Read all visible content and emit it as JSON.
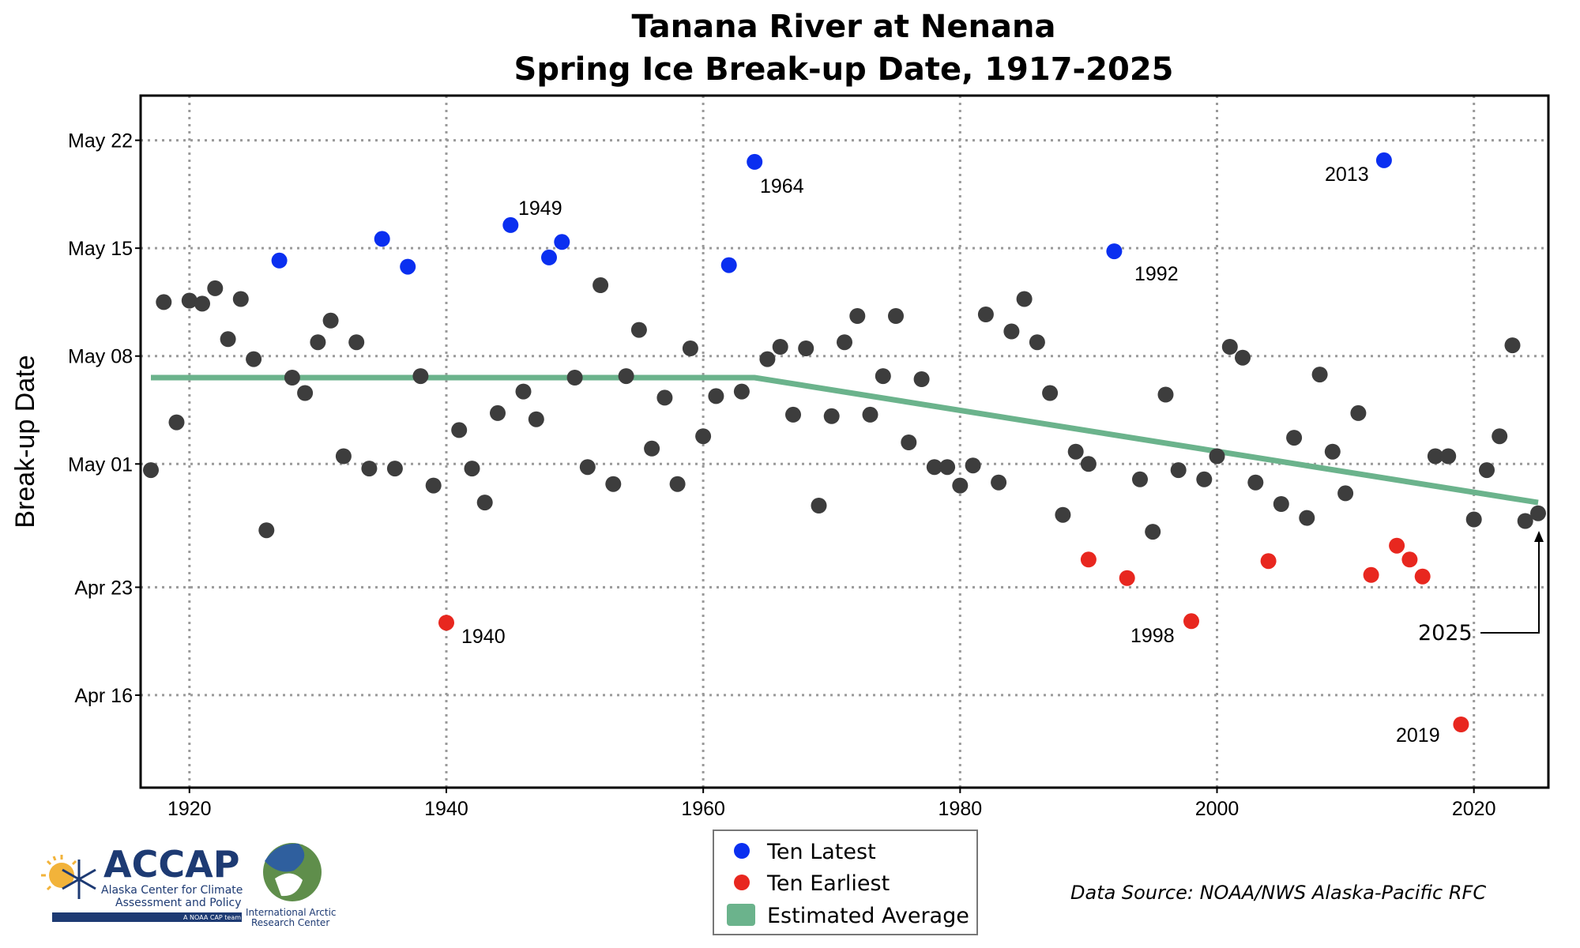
{
  "chart_data": {
    "type": "scatter",
    "title": [
      "Tanana River at Nenana",
      "Spring Ice Break-up Date, 1917-2025"
    ],
    "ylabel": "Break-up Date",
    "xlabel": "",
    "x_ticks": [
      1920,
      1940,
      1960,
      1980,
      2000,
      2020
    ],
    "y_ticks": [
      {
        "doy": 106,
        "label": "Apr 16"
      },
      {
        "doy": 113,
        "label": "Apr 23"
      },
      {
        "doy": 121,
        "label": "May 01"
      },
      {
        "doy": 128,
        "label": "May 08"
      },
      {
        "doy": 135,
        "label": "May 15"
      },
      {
        "doy": 142,
        "label": "May 22"
      }
    ],
    "xlim": [
      1916.2,
      2025.8
    ],
    "ylim_doy": [
      100.0,
      144.9
    ],
    "grid": true,
    "legend_position": "bottom-center",
    "colors": {
      "normal": "#3d3d3d",
      "latest": "#0a2ff0",
      "earliest": "#e8271f",
      "average": "#6bb38c"
    },
    "series": [
      {
        "name": "",
        "color_key": "normal",
        "points": [
          [
            1917,
            120.6
          ],
          [
            1918,
            131.5
          ],
          [
            1919,
            123.7
          ],
          [
            1920,
            131.6
          ],
          [
            1921,
            131.4
          ],
          [
            1922,
            132.4
          ],
          [
            1923,
            129.1
          ],
          [
            1924,
            131.7
          ],
          [
            1925,
            127.8
          ],
          [
            1926,
            116.7
          ],
          [
            1928,
            126.6
          ],
          [
            1929,
            125.6
          ],
          [
            1930,
            128.9
          ],
          [
            1931,
            130.3
          ],
          [
            1932,
            121.5
          ],
          [
            1933,
            128.9
          ],
          [
            1934,
            120.7
          ],
          [
            1936,
            120.7
          ],
          [
            1938,
            126.7
          ],
          [
            1939,
            119.6
          ],
          [
            1941,
            123.2
          ],
          [
            1942,
            120.7
          ],
          [
            1943,
            118.5
          ],
          [
            1944,
            124.3
          ],
          [
            1946,
            125.7
          ],
          [
            1947,
            123.9
          ],
          [
            1950,
            126.6
          ],
          [
            1951,
            120.8
          ],
          [
            1952,
            132.6
          ],
          [
            1953,
            119.7
          ],
          [
            1954,
            126.7
          ],
          [
            1955,
            129.7
          ],
          [
            1956,
            122.0
          ],
          [
            1957,
            125.3
          ],
          [
            1958,
            119.7
          ],
          [
            1959,
            128.5
          ],
          [
            1960,
            122.8
          ],
          [
            1961,
            125.4
          ],
          [
            1963,
            125.7
          ],
          [
            1965,
            127.8
          ],
          [
            1966,
            128.6
          ],
          [
            1967,
            124.2
          ],
          [
            1968,
            128.5
          ],
          [
            1969,
            118.3
          ],
          [
            1970,
            124.1
          ],
          [
            1971,
            128.9
          ],
          [
            1972,
            130.6
          ],
          [
            1973,
            124.2
          ],
          [
            1974,
            126.7
          ],
          [
            1975,
            130.6
          ],
          [
            1976,
            122.4
          ],
          [
            1977,
            126.5
          ],
          [
            1978,
            120.8
          ],
          [
            1979,
            120.8
          ],
          [
            1980,
            119.6
          ],
          [
            1981,
            120.9
          ],
          [
            1982,
            130.7
          ],
          [
            1983,
            119.8
          ],
          [
            1984,
            129.6
          ],
          [
            1985,
            131.7
          ],
          [
            1986,
            128.9
          ],
          [
            1987,
            125.6
          ],
          [
            1988,
            117.7
          ],
          [
            1989,
            121.8
          ],
          [
            1990,
            121.0
          ],
          [
            1994,
            120.0
          ],
          [
            1995,
            116.6
          ],
          [
            1996,
            125.5
          ],
          [
            1997,
            120.6
          ],
          [
            1999,
            120.0
          ],
          [
            2000,
            121.5
          ],
          [
            2001,
            128.6
          ],
          [
            2002,
            127.9
          ],
          [
            2003,
            119.8
          ],
          [
            2005,
            118.4
          ],
          [
            2006,
            122.7
          ],
          [
            2007,
            117.5
          ],
          [
            2008,
            126.8
          ],
          [
            2009,
            121.8
          ],
          [
            2010,
            119.1
          ],
          [
            2011,
            124.3
          ],
          [
            2017,
            121.5
          ],
          [
            2018,
            121.5
          ],
          [
            2020,
            117.4
          ],
          [
            2021,
            120.6
          ],
          [
            2022,
            122.8
          ],
          [
            2023,
            128.7
          ],
          [
            2024,
            117.3
          ],
          [
            2025,
            117.8
          ]
        ]
      },
      {
        "name": "Ten Latest",
        "color_key": "latest",
        "points": [
          [
            1927,
            134.2
          ],
          [
            1935,
            135.6
          ],
          [
            1937,
            133.8
          ],
          [
            1945,
            136.5
          ],
          [
            1948,
            134.4
          ],
          [
            1949,
            135.4
          ],
          [
            1962,
            133.9
          ],
          [
            1964,
            140.6
          ],
          [
            1992,
            134.8
          ],
          [
            2013,
            140.7
          ]
        ]
      },
      {
        "name": "Ten Earliest",
        "color_key": "earliest",
        "points": [
          [
            1940,
            110.7
          ],
          [
            1990,
            114.8
          ],
          [
            1993,
            113.6
          ],
          [
            1998,
            110.8
          ],
          [
            2004,
            114.7
          ],
          [
            2012,
            113.8
          ],
          [
            2014,
            115.7
          ],
          [
            2015,
            114.8
          ],
          [
            2016,
            113.7
          ],
          [
            2019,
            104.1
          ]
        ]
      },
      {
        "name": "Estimated Average",
        "color_key": "average",
        "type": "line",
        "points": [
          [
            1917,
            126.6
          ],
          [
            1964,
            126.6
          ],
          [
            2025,
            118.5
          ]
        ]
      }
    ],
    "annotations": [
      {
        "text": "1949",
        "year": 1949
      },
      {
        "text": "1964",
        "year": 1964
      },
      {
        "text": "2013",
        "year": 2013
      },
      {
        "text": "1992",
        "year": 1992
      },
      {
        "text": "1940",
        "year": 1940
      },
      {
        "text": "1998",
        "year": 1998
      },
      {
        "text": "2019",
        "year": 2019
      },
      {
        "text": "2025",
        "year": 2025
      }
    ]
  },
  "legend": {
    "items": [
      {
        "label": "Ten Latest",
        "color_key": "latest",
        "shape": "dot"
      },
      {
        "label": "Ten Earliest",
        "color_key": "earliest",
        "shape": "dot"
      },
      {
        "label": "Estimated Average",
        "color_key": "average",
        "shape": "square"
      }
    ]
  },
  "source": "Data Source: NOAA/NWS Alaska-Pacific RFC",
  "logos": {
    "accap": {
      "name": "ACCAP",
      "line1": "Alaska Center for Climate",
      "line2": "Assessment and Policy",
      "tag": "A NOAA CAP team"
    },
    "iarc": {
      "line1": "International Arctic",
      "line2": "Research Center"
    }
  }
}
